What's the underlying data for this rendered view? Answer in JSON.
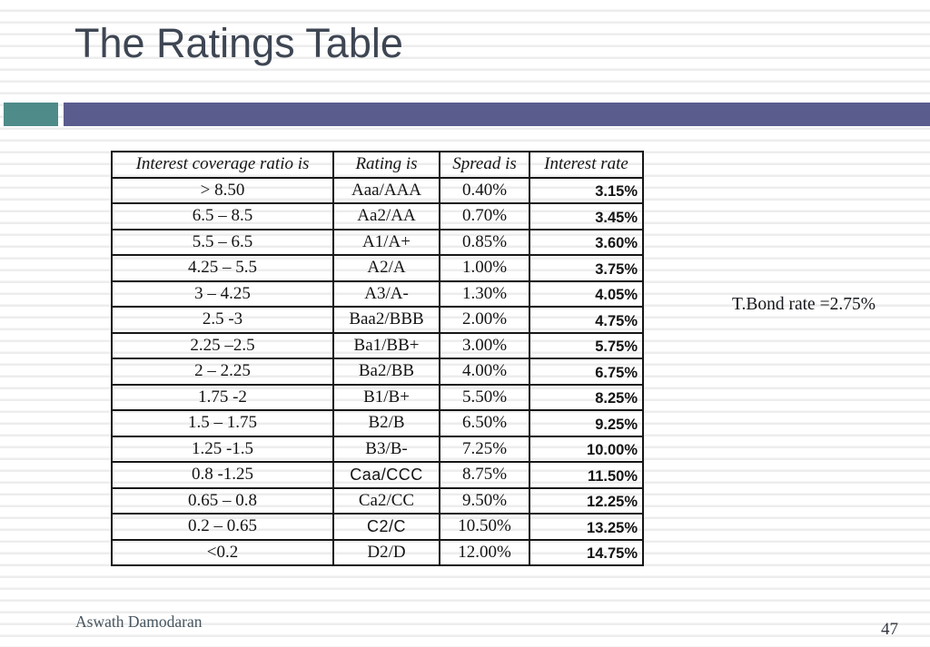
{
  "slide": {
    "title": "The Ratings Table",
    "note": "T.Bond rate =2.75%",
    "footer": "Aswath Damodaran",
    "page_number": "47",
    "accent_colors": {
      "teal": "#4e8b89",
      "purple": "#5a5c8e"
    }
  },
  "table": {
    "headers": [
      "Interest coverage ratio is",
      "Rating is",
      "Spread is",
      "Interest rate"
    ],
    "rows": [
      {
        "coverage": "> 8.50",
        "rating": "Aaa/AAA",
        "spread": "0.40%",
        "interest_rate": "3.15%"
      },
      {
        "coverage": "6.5 – 8.5",
        "rating": "Aa2/AA",
        "spread": "0.70%",
        "interest_rate": "3.45%"
      },
      {
        "coverage": "5.5 – 6.5",
        "rating": "A1/A+",
        "spread": "0.85%",
        "interest_rate": "3.60%"
      },
      {
        "coverage": "4.25 – 5.5",
        "rating": "A2/A",
        "spread": "1.00%",
        "interest_rate": "3.75%"
      },
      {
        "coverage": "3 – 4.25",
        "rating": "A3/A-",
        "spread": "1.30%",
        "interest_rate": "4.05%"
      },
      {
        "coverage": "2.5 -3",
        "rating": "Baa2/BBB",
        "spread": "2.00%",
        "interest_rate": "4.75%"
      },
      {
        "coverage": "2.25 –2.5",
        "rating": "Ba1/BB+",
        "spread": "3.00%",
        "interest_rate": "5.75%"
      },
      {
        "coverage": "2 – 2.25",
        "rating": "Ba2/BB",
        "spread": "4.00%",
        "interest_rate": "6.75%"
      },
      {
        "coverage": "1.75 -2",
        "rating": "B1/B+",
        "spread": "5.50%",
        "interest_rate": "8.25%"
      },
      {
        "coverage": "1.5 – 1.75",
        "rating": "B2/B",
        "spread": "6.50%",
        "interest_rate": "9.25%"
      },
      {
        "coverage": "1.25 -1.5",
        "rating": "B3/B-",
        "spread": "7.25%",
        "interest_rate": "10.00%"
      },
      {
        "coverage": "0.8 -1.25",
        "rating": "Caa/CCC",
        "rating_sans": true,
        "spread": "8.75%",
        "interest_rate": "11.50%"
      },
      {
        "coverage": "0.65 – 0.8",
        "rating": "Ca2/CC",
        "spread": "9.50%",
        "interest_rate": "12.25%"
      },
      {
        "coverage": "0.2 – 0.65",
        "rating": "C2/C",
        "rating_sans": true,
        "spread": "10.50%",
        "interest_rate": "13.25%"
      },
      {
        "coverage": "<0.2",
        "rating": "D2/D",
        "spread": "12.00%",
        "interest_rate": "14.75%"
      }
    ]
  }
}
